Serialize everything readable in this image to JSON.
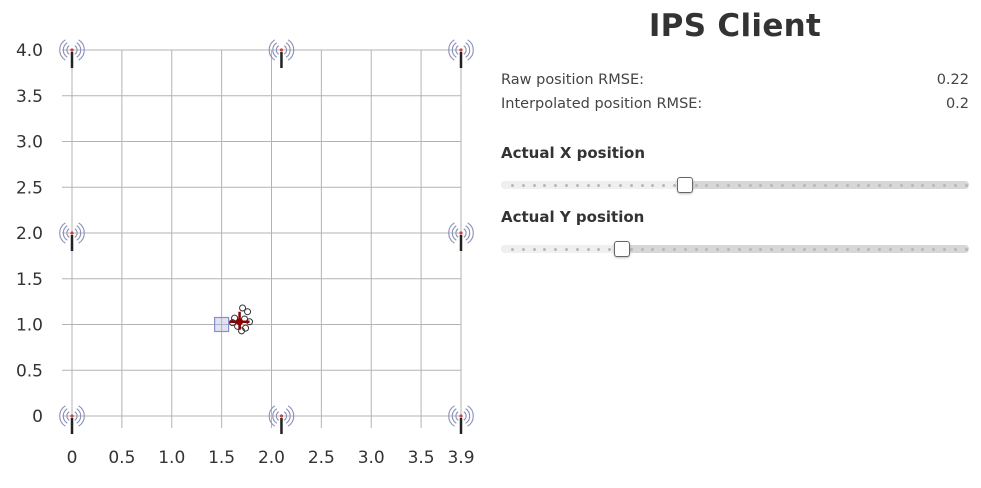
{
  "app": {
    "title": "IPS Client"
  },
  "stats": [
    {
      "label": "Raw position RMSE:",
      "value": "0.22"
    },
    {
      "label": "Interpolated position RMSE:",
      "value": "0.2"
    }
  ],
  "sliders": [
    {
      "label": "Actual X position",
      "value": 0.39,
      "min": 0,
      "max": 1
    },
    {
      "label": "Actual Y position",
      "value": 0.25,
      "min": 0,
      "max": 1
    }
  ],
  "plot": {
    "x_ticks": [
      "0",
      "0.5",
      "1.0",
      "1.5",
      "2.0",
      "2.5",
      "3.0",
      "3.5",
      "3.9"
    ],
    "y_ticks": [
      "0",
      "0.5",
      "1.0",
      "1.5",
      "2.0",
      "2.5",
      "3.0",
      "3.5",
      "4.0"
    ],
    "xlim": [
      0,
      3.9
    ],
    "ylim": [
      0,
      4.0
    ],
    "anchors": [
      {
        "x": 0,
        "y": 4.0
      },
      {
        "x": 2.1,
        "y": 4.0
      },
      {
        "x": 3.9,
        "y": 4.0
      },
      {
        "x": 0,
        "y": 2.0
      },
      {
        "x": 3.9,
        "y": 2.0
      },
      {
        "x": 0,
        "y": 0
      },
      {
        "x": 2.1,
        "y": 0
      },
      {
        "x": 3.9,
        "y": 0
      }
    ],
    "actual_position": {
      "x": 1.5,
      "y": 1.0
    },
    "estimated_position": {
      "x": 1.68,
      "y": 1.03
    },
    "raw_samples": [
      {
        "x": 1.71,
        "y": 1.18
      },
      {
        "x": 1.76,
        "y": 1.14
      },
      {
        "x": 1.63,
        "y": 1.07
      },
      {
        "x": 1.73,
        "y": 1.06
      },
      {
        "x": 1.78,
        "y": 1.03
      },
      {
        "x": 1.61,
        "y": 1.02
      },
      {
        "x": 1.66,
        "y": 0.98
      },
      {
        "x": 1.7,
        "y": 0.93
      },
      {
        "x": 1.74,
        "y": 0.96
      }
    ],
    "colors": {
      "grid": "#b3b3b3",
      "anchor": "#8a8fb8",
      "anchor_dot": "#d04040",
      "actual": "#8a8fc8",
      "estimate": "#8b0000"
    }
  }
}
